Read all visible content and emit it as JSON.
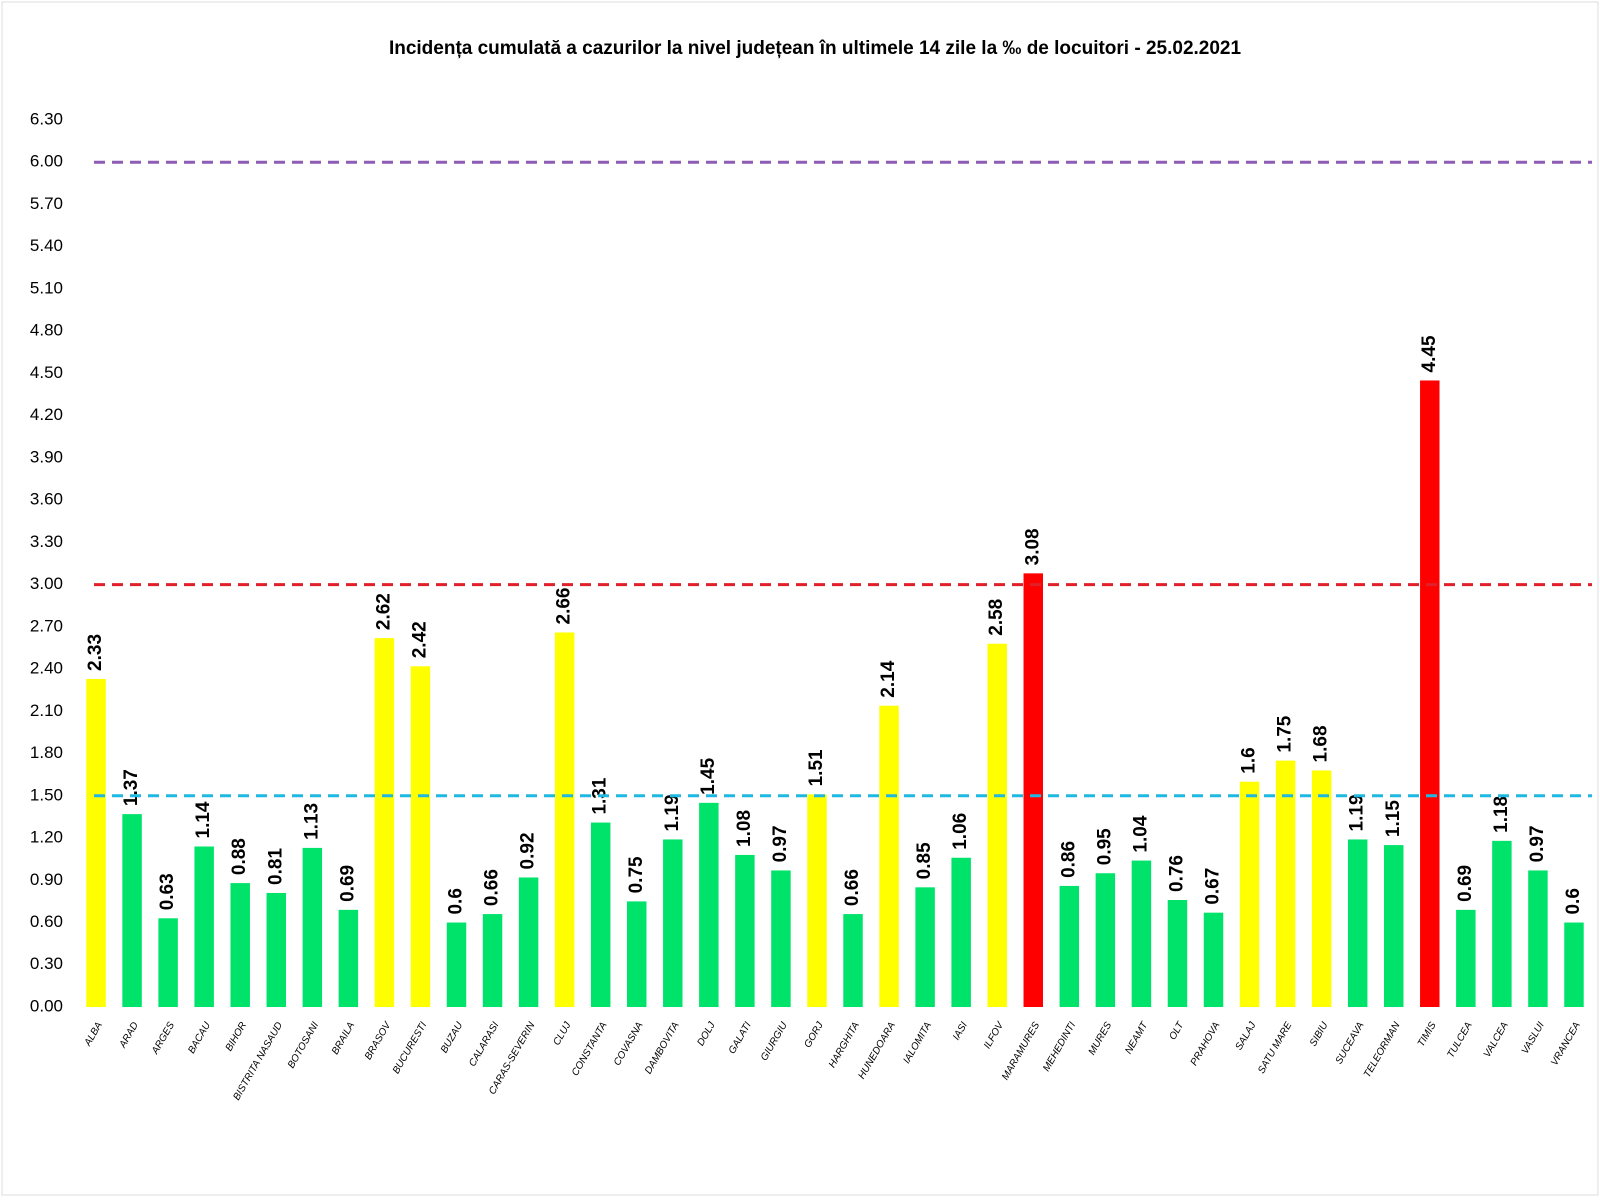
{
  "chart_data": {
    "type": "bar",
    "title": "Incidența cumulată a cazurilor la nivel județean în ultimele 14 zile   la ‰ de locuitori  - 25.02.2021",
    "categories": [
      "ALBA",
      "ARAD",
      "ARGES",
      "BACAU",
      "BIHOR",
      "BISTRITA NASAUD",
      "BOTOSANI",
      "BRAILA",
      "BRASOV",
      "BUCURESTI",
      "BUZAU",
      "CALARASI",
      "CARAS-SEVERIN",
      "CLUJ",
      "CONSTANTA",
      "COVASNA",
      "DAMBOVITA",
      "DOLJ",
      "GALATI",
      "GIURGIU",
      "GORJ",
      "HARGHITA",
      "HUNEDOARA",
      "IALOMITA",
      "IASI",
      "ILFOV",
      "MARAMURES",
      "MEHEDINTI",
      "MURES",
      "NEAMT",
      "OLT",
      "PRAHOVA",
      "SALAJ",
      "SATU MARE",
      "SIBIU",
      "SUCEAVA",
      "TELEORMAN",
      "TIMIS",
      "TULCEA",
      "VALCEA",
      "VASLUI",
      "VRANCEA"
    ],
    "values": [
      2.33,
      1.37,
      0.63,
      1.14,
      0.88,
      0.81,
      1.13,
      0.69,
      2.62,
      2.42,
      0.6,
      0.66,
      0.92,
      2.66,
      1.31,
      0.75,
      1.19,
      1.45,
      1.08,
      0.97,
      1.51,
      0.66,
      2.14,
      0.85,
      1.06,
      2.58,
      3.08,
      0.86,
      0.95,
      1.04,
      0.76,
      0.67,
      1.6,
      1.75,
      1.68,
      1.19,
      1.15,
      4.45,
      0.69,
      1.18,
      0.97,
      0.6
    ],
    "colors": [
      "#ffff00",
      "#00e36a",
      "#00e36a",
      "#00e36a",
      "#00e36a",
      "#00e36a",
      "#00e36a",
      "#00e36a",
      "#ffff00",
      "#ffff00",
      "#00e36a",
      "#00e36a",
      "#00e36a",
      "#ffff00",
      "#00e36a",
      "#00e36a",
      "#00e36a",
      "#00e36a",
      "#00e36a",
      "#00e36a",
      "#ffff00",
      "#00e36a",
      "#ffff00",
      "#00e36a",
      "#00e36a",
      "#ffff00",
      "#ff0000",
      "#00e36a",
      "#00e36a",
      "#00e36a",
      "#00e36a",
      "#00e36a",
      "#ffff00",
      "#ffff00",
      "#ffff00",
      "#00e36a",
      "#00e36a",
      "#ff0000",
      "#00e36a",
      "#00e36a",
      "#00e36a",
      "#00e36a"
    ],
    "ylim": [
      0,
      6.3
    ],
    "yticks": [
      {
        "value": 0,
        "label": "0.00"
      },
      {
        "value": 0.3,
        "label": "0.30"
      },
      {
        "value": 0.6,
        "label": "0.60"
      },
      {
        "value": 0.9,
        "label": "0.90"
      },
      {
        "value": 1.2,
        "label": "1.20"
      },
      {
        "value": 1.5,
        "label": "1.50"
      },
      {
        "value": 1.8,
        "label": "1.80"
      },
      {
        "value": 2.1,
        "label": "2.10"
      },
      {
        "value": 2.4,
        "label": "2.40"
      },
      {
        "value": 2.7,
        "label": "2.70"
      },
      {
        "value": 3,
        "label": "3.00"
      },
      {
        "value": 3.3,
        "label": "3.30"
      },
      {
        "value": 3.6,
        "label": "3.60"
      },
      {
        "value": 3.9,
        "label": "3.90"
      },
      {
        "value": 4.2,
        "label": "4.20"
      },
      {
        "value": 4.5,
        "label": "4.50"
      },
      {
        "value": 4.8,
        "label": "4.80"
      },
      {
        "value": 5.1,
        "label": "5.10"
      },
      {
        "value": 5.4,
        "label": "5.40"
      },
      {
        "value": 5.7,
        "label": "5.70"
      },
      {
        "value": 6,
        "label": "6.00"
      },
      {
        "value": 6.3,
        "label": "6.30"
      }
    ],
    "reference_lines": [
      {
        "value": 1.5,
        "color": "#1fb8e0"
      },
      {
        "value": 3,
        "color": "#e0202a"
      },
      {
        "value": 6,
        "color": "#8e5bb5"
      }
    ]
  }
}
